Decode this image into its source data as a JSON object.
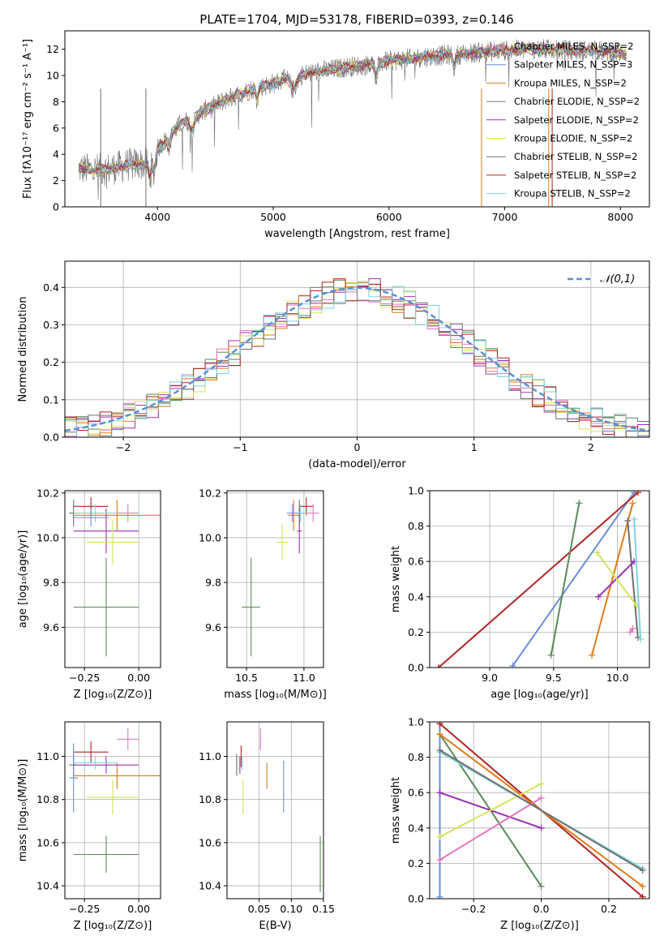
{
  "title": "PLATE=1704, MJD=53178, FIBERID=0393, z=0.146",
  "palette": [
    "#e377c2",
    "#e07b1a",
    "#5a8a5a",
    "#9b30b4",
    "#d6e35a",
    "#707070",
    "#b22222",
    "#7fd3dc",
    "#6a8fd8"
  ],
  "chart_data": [
    {
      "panel": "spectrum",
      "type": "line",
      "xlabel": "wavelength [Angstrom, rest frame]",
      "ylabel": "Flux [fλ10⁻¹⁷ erg cm⁻² s⁻¹ A⁻¹]",
      "xlim": [
        3200,
        8250
      ],
      "ylim": [
        0,
        13.4
      ],
      "xticks": [
        4000,
        5000,
        6000,
        7000,
        8000
      ],
      "yticks": [
        0,
        2,
        4,
        6,
        8,
        10,
        12
      ],
      "grid": false,
      "legend_position": "top-right",
      "continuum": {
        "x": [
          3320,
          3450,
          3600,
          3750,
          3900,
          4000,
          4200,
          4400,
          4600,
          4800,
          5000,
          5200,
          5400,
          5600,
          5800,
          6000,
          6200,
          6400,
          6600,
          6800,
          7000,
          7200,
          7400,
          7600,
          7800,
          8000
        ],
        "y": [
          2.9,
          2.8,
          2.9,
          3.2,
          3.3,
          4.4,
          6.3,
          7.3,
          8.2,
          8.9,
          9.4,
          10.0,
          10.3,
          10.6,
          10.8,
          11.1,
          11.3,
          11.5,
          11.6,
          11.8,
          11.9,
          12.0,
          12.0,
          11.9,
          11.9,
          11.7
        ]
      },
      "series": [
        {
          "name": "Chabrier MILES, N_SSP=2",
          "color_index": 0
        },
        {
          "name": "Salpeter MILES, N_SSP=3",
          "color_index": 8
        },
        {
          "name": "Kroupa MILES, N_SSP=2",
          "color_index": 1
        },
        {
          "name": "Chabrier ELODIE, N_SSP=2",
          "color_index": 2
        },
        {
          "name": "Salpeter ELODIE, N_SSP=2",
          "color_index": 3
        },
        {
          "name": "Kroupa ELODIE, N_SSP=2",
          "color_index": 4
        },
        {
          "name": "Chabrier STELIB, N_SSP=2",
          "color_index": 5
        },
        {
          "name": "Salpeter STELIB, N_SSP=2",
          "color_index": 6
        },
        {
          "name": "Kroupa STELIB, N_SSP=2",
          "color_index": 7
        }
      ]
    },
    {
      "panel": "residuals",
      "type": "histogram",
      "xlabel": "(data-model)/error",
      "ylabel": "Normed distribution",
      "xlim": [
        -2.5,
        2.5
      ],
      "ylim": [
        0,
        0.47
      ],
      "xticks": [
        -2,
        -1,
        0,
        1,
        2
      ],
      "yticks": [
        0.0,
        0.1,
        0.2,
        0.3,
        0.4
      ],
      "grid": true,
      "bin_width": 0.1,
      "model_curve": {
        "label": "𝒩(0,1)",
        "color": "#5b8fd6",
        "style": "dashed",
        "mean": 0,
        "sigma": 1
      },
      "legend_position": "top-right"
    },
    {
      "panel": "age-vs-Z",
      "type": "errorbar",
      "xlabel": "Z [log₁₀(Z/Z⊙)]",
      "ylabel": "age  [log₁₀(age/yr)]",
      "xlim": [
        -0.34,
        0.1
      ],
      "ylim": [
        9.42,
        10.21
      ],
      "xticks": [
        -0.25,
        0.0
      ],
      "yticks": [
        9.6,
        9.8,
        10.0,
        10.2
      ],
      "points": [
        {
          "color_index": 0,
          "x": -0.05,
          "y": 10.11,
          "xerr": 0.05,
          "yerr": 0.04
        },
        {
          "color_index": 1,
          "x": -0.1,
          "y": 10.1,
          "xerr": 0.2,
          "yerr": 0.07
        },
        {
          "color_index": 2,
          "x": -0.15,
          "y": 9.69,
          "xerr": 0.15,
          "yerr": 0.22
        },
        {
          "color_index": 3,
          "x": -0.15,
          "y": 10.03,
          "xerr": 0.15,
          "yerr": 0.1
        },
        {
          "color_index": 4,
          "x": -0.12,
          "y": 9.98,
          "xerr": 0.12,
          "yerr": 0.1
        },
        {
          "color_index": 5,
          "x": -0.3,
          "y": 10.11,
          "xerr": 0.02,
          "yerr": 0.06
        },
        {
          "color_index": 6,
          "x": -0.22,
          "y": 10.14,
          "xerr": 0.08,
          "yerr": 0.04
        },
        {
          "color_index": 7,
          "x": -0.2,
          "y": 10.11,
          "xerr": 0.1,
          "yerr": 0.04
        },
        {
          "color_index": 8,
          "x": -0.22,
          "y": 10.09,
          "xerr": 0.08,
          "yerr": 0.04
        }
      ]
    },
    {
      "panel": "age-vs-mass",
      "type": "errorbar",
      "xlabel": "mass [log₁₀(M/M⊙)]",
      "ylabel": "",
      "xlim": [
        10.33,
        11.17
      ],
      "ylim": [
        9.42,
        10.21
      ],
      "xticks": [
        10.5,
        11.0
      ],
      "yticks": [
        9.6,
        9.8,
        10.0,
        10.2
      ],
      "points": [
        {
          "color_index": 0,
          "x": 11.08,
          "y": 10.11,
          "xerr": 0.05,
          "yerr": 0.04
        },
        {
          "color_index": 1,
          "x": 10.91,
          "y": 10.1,
          "xerr": 0.05,
          "yerr": 0.07
        },
        {
          "color_index": 2,
          "x": 10.54,
          "y": 9.69,
          "xerr": 0.08,
          "yerr": 0.22
        },
        {
          "color_index": 3,
          "x": 10.96,
          "y": 10.03,
          "xerr": 0.02,
          "yerr": 0.1
        },
        {
          "color_index": 4,
          "x": 10.81,
          "y": 9.98,
          "xerr": 0.05,
          "yerr": 0.08
        },
        {
          "color_index": 5,
          "x": 10.96,
          "y": 10.11,
          "xerr": 0.03,
          "yerr": 0.06
        },
        {
          "color_index": 6,
          "x": 11.02,
          "y": 10.14,
          "xerr": 0.06,
          "yerr": 0.04
        },
        {
          "color_index": 7,
          "x": 10.97,
          "y": 10.11,
          "xerr": 0.04,
          "yerr": 0.04
        },
        {
          "color_index": 8,
          "x": 10.9,
          "y": 10.11,
          "xerr": 0.05,
          "yerr": 0.04
        }
      ]
    },
    {
      "panel": "weight-vs-age",
      "type": "line",
      "xlabel": "age  [log₁₀(age/yr)]",
      "ylabel": "mass weight",
      "xlim": [
        8.53,
        10.25
      ],
      "ylim": [
        0,
        1.0
      ],
      "xticks": [
        9.0,
        9.5,
        10.0
      ],
      "yticks": [
        0.0,
        0.2,
        0.4,
        0.6,
        0.8,
        1.0
      ],
      "grid": true,
      "series": [
        {
          "color_index": 8,
          "x": [
            9.18,
            10.13
          ],
          "y": [
            0.01,
            0.99
          ]
        },
        {
          "color_index": 6,
          "x": [
            8.6,
            10.16
          ],
          "y": [
            0.0,
            0.99
          ]
        },
        {
          "color_index": 2,
          "x": [
            9.48,
            9.7
          ],
          "y": [
            0.07,
            0.93
          ]
        },
        {
          "color_index": 1,
          "x": [
            9.8,
            10.12
          ],
          "y": [
            0.07,
            0.93
          ]
        },
        {
          "color_index": 5,
          "x": [
            10.08,
            10.16
          ],
          "y": [
            0.83,
            0.17
          ]
        },
        {
          "color_index": 3,
          "x": [
            9.85,
            10.13
          ],
          "y": [
            0.4,
            0.6
          ]
        },
        {
          "color_index": 4,
          "x": [
            9.84,
            10.15
          ],
          "y": [
            0.65,
            0.35
          ]
        },
        {
          "color_index": 0,
          "x": [
            10.1,
            10.12
          ],
          "y": [
            0.2,
            0.22
          ]
        },
        {
          "color_index": 7,
          "x": [
            10.13,
            10.18
          ],
          "y": [
            0.84,
            0.16
          ]
        }
      ]
    },
    {
      "panel": "mass-vs-Z",
      "type": "errorbar",
      "xlabel": "Z [log₁₀(Z/Z⊙)]",
      "ylabel": "mass [log₁₀(M/M⊙)]",
      "xlim": [
        -0.34,
        0.1
      ],
      "ylim": [
        10.34,
        11.16
      ],
      "xticks": [
        -0.25,
        0.0
      ],
      "yticks": [
        10.4,
        10.6,
        10.8,
        11.0
      ],
      "points": [
        {
          "color_index": 0,
          "x": -0.05,
          "y": 11.08,
          "xerr": 0.05,
          "yerr": 0.05
        },
        {
          "color_index": 1,
          "x": -0.1,
          "y": 10.91,
          "xerr": 0.2,
          "yerr": 0.06
        },
        {
          "color_index": 2,
          "x": -0.15,
          "y": 10.545,
          "xerr": 0.15,
          "yerr": 0.085
        },
        {
          "color_index": 3,
          "x": -0.15,
          "y": 10.96,
          "xerr": 0.15,
          "yerr": 0.04
        },
        {
          "color_index": 4,
          "x": -0.12,
          "y": 10.81,
          "xerr": 0.12,
          "yerr": 0.08
        },
        {
          "color_index": 5,
          "x": -0.3,
          "y": 10.96,
          "xerr": 0.02,
          "yerr": 0.05
        },
        {
          "color_index": 6,
          "x": -0.22,
          "y": 11.02,
          "xerr": 0.08,
          "yerr": 0.05
        },
        {
          "color_index": 7,
          "x": -0.2,
          "y": 10.97,
          "xerr": 0.1,
          "yerr": 0.03
        },
        {
          "color_index": 8,
          "x": -0.3,
          "y": 10.9,
          "xerr": 0.02,
          "yerr": 0.16
        }
      ]
    },
    {
      "panel": "mass-vs-EBV",
      "type": "errorbar",
      "xlabel": "E(B-V)",
      "ylabel": "",
      "xlim": [
        0.0,
        0.15
      ],
      "ylim": [
        10.34,
        11.16
      ],
      "xticks": [
        0.05,
        0.1,
        0.15
      ],
      "yticks": [
        10.4,
        10.6,
        10.8,
        11.0
      ],
      "points": [
        {
          "color_index": 0,
          "x": 0.052,
          "y": 11.08,
          "yerr": 0.05
        },
        {
          "color_index": 1,
          "x": 0.062,
          "y": 10.91,
          "yerr": 0.06
        },
        {
          "color_index": 2,
          "x": 0.145,
          "y": 10.5,
          "yerr": 0.13
        },
        {
          "color_index": 3,
          "x": 0.02,
          "y": 10.96,
          "yerr": 0.04
        },
        {
          "color_index": 4,
          "x": 0.025,
          "y": 10.81,
          "yerr": 0.08
        },
        {
          "color_index": 5,
          "x": 0.015,
          "y": 10.96,
          "yerr": 0.05
        },
        {
          "color_index": 6,
          "x": 0.022,
          "y": 11.0,
          "yerr": 0.05
        },
        {
          "color_index": 7,
          "x": 0.024,
          "y": 10.97,
          "yerr": 0.03
        },
        {
          "color_index": 8,
          "x": 0.088,
          "y": 10.86,
          "yerr": 0.12
        }
      ]
    },
    {
      "panel": "weight-vs-Z",
      "type": "line",
      "xlabel": "Z [log₁₀(Z/Z⊙)]",
      "ylabel": "mass weight",
      "xlim": [
        -0.33,
        0.32
      ],
      "ylim": [
        0,
        1.0
      ],
      "xticks": [
        -0.2,
        0.0,
        0.2
      ],
      "yticks": [
        0.0,
        0.2,
        0.4,
        0.6,
        0.8,
        1.0
      ],
      "grid": true,
      "series": [
        {
          "color_index": 8,
          "x": [
            -0.3,
            -0.3
          ],
          "y": [
            0.01,
            0.99
          ]
        },
        {
          "color_index": 6,
          "x": [
            -0.3,
            0.3
          ],
          "y": [
            0.99,
            0.01
          ]
        },
        {
          "color_index": 2,
          "x": [
            -0.3,
            0.0
          ],
          "y": [
            0.93,
            0.07
          ]
        },
        {
          "color_index": 1,
          "x": [
            -0.3,
            0.3
          ],
          "y": [
            0.93,
            0.07
          ]
        },
        {
          "color_index": 3,
          "x": [
            -0.3,
            0.0
          ],
          "y": [
            0.6,
            0.4
          ]
        },
        {
          "color_index": 4,
          "x": [
            -0.3,
            0.0
          ],
          "y": [
            0.35,
            0.65
          ]
        },
        {
          "color_index": 0,
          "x": [
            -0.3,
            0.0
          ],
          "y": [
            0.22,
            0.57
          ]
        },
        {
          "color_index": 7,
          "x": [
            -0.3,
            0.3
          ],
          "y": [
            0.83,
            0.17
          ]
        },
        {
          "color_index": 5,
          "x": [
            -0.3,
            0.3
          ],
          "y": [
            0.84,
            0.16
          ]
        }
      ]
    }
  ]
}
